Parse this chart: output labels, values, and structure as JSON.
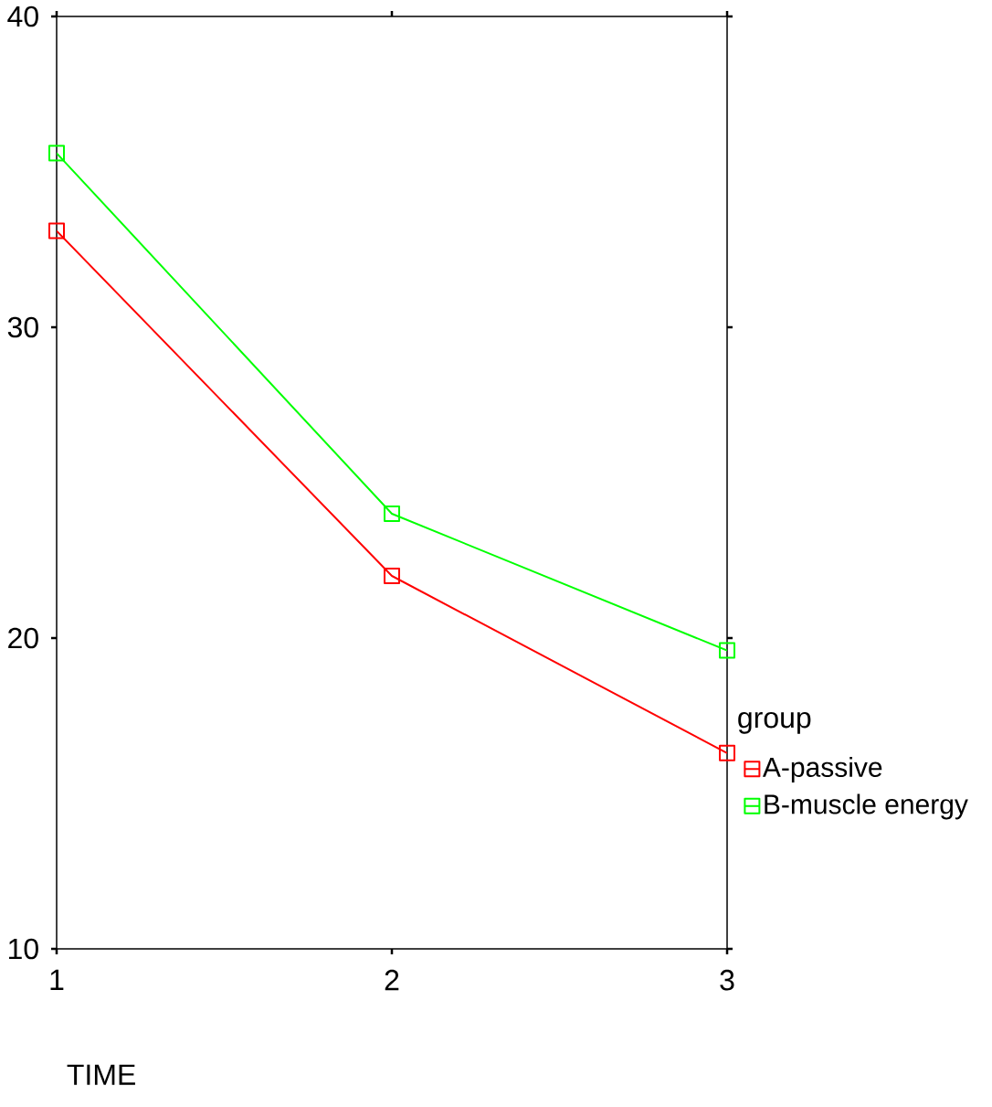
{
  "chart_data": {
    "type": "line",
    "xlabel": "TIME",
    "legend_title": "group",
    "x": [
      1,
      2,
      3
    ],
    "xlim": [
      1,
      3
    ],
    "xticks": [
      1,
      2,
      3
    ],
    "ylim": [
      10,
      40
    ],
    "yticks": [
      10,
      20,
      30,
      40
    ],
    "series": [
      {
        "name": "A-passive",
        "color": "#ff0000",
        "values": [
          33.1,
          22.0,
          16.3
        ]
      },
      {
        "name": "B-muscle energy",
        "color": "#00ff00",
        "values": [
          35.6,
          24.0,
          19.6
        ]
      }
    ],
    "marker": "square",
    "line_style": "solid",
    "legend": "right",
    "grid": false
  }
}
